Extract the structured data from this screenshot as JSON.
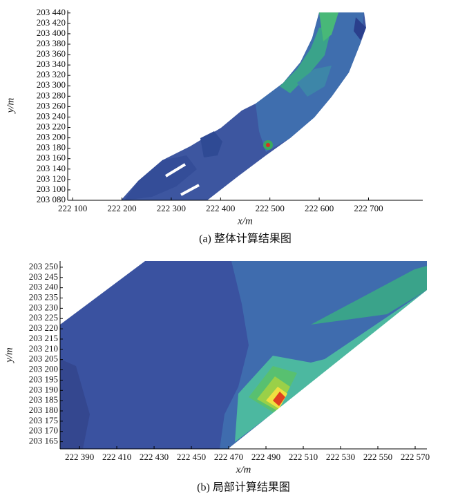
{
  "chart_data": [
    {
      "type": "contour",
      "caption": "(a) 整体计算结果图",
      "xlabel": "x/m",
      "ylabel": "y/m",
      "xlim": [
        222090,
        222810
      ],
      "ylim": [
        203080,
        203445
      ],
      "xticks": [
        {
          "value": 222100,
          "label": "222 100"
        },
        {
          "value": 222200,
          "label": "222 200"
        },
        {
          "value": 222300,
          "label": "222 300"
        },
        {
          "value": 222400,
          "label": "222 400"
        },
        {
          "value": 222500,
          "label": "222 500"
        },
        {
          "value": 222600,
          "label": "222 600"
        },
        {
          "value": 222700,
          "label": "222 700"
        }
      ],
      "yticks": [
        {
          "value": 203080,
          "label": "203 080"
        },
        {
          "value": 203100,
          "label": "203 100"
        },
        {
          "value": 203120,
          "label": "203 120"
        },
        {
          "value": 203140,
          "label": "203 140"
        },
        {
          "value": 203160,
          "label": "203 160"
        },
        {
          "value": 203180,
          "label": "203 180"
        },
        {
          "value": 203200,
          "label": "203 200"
        },
        {
          "value": 203220,
          "label": "203 220"
        },
        {
          "value": 203240,
          "label": "203 240"
        },
        {
          "value": 203260,
          "label": "203 260"
        },
        {
          "value": 203280,
          "label": "203 280"
        },
        {
          "value": 203300,
          "label": "203 300"
        },
        {
          "value": 203320,
          "label": "203 320"
        },
        {
          "value": 203340,
          "label": "203 340"
        },
        {
          "value": 203360,
          "label": "203 360"
        },
        {
          "value": 203380,
          "label": "203 380"
        },
        {
          "value": 203400,
          "label": "203 400"
        },
        {
          "value": 203420,
          "label": "203 420"
        },
        {
          "value": 203440,
          "label": "203 440"
        }
      ]
    },
    {
      "type": "contour",
      "caption": "(b) 局部计算结果图",
      "xlabel": "x/m",
      "ylabel": "y/m",
      "xlim": [
        222379.6,
        222576.3
      ],
      "ylim": [
        203161.5,
        203253
      ],
      "xticks": [
        {
          "value": 222390,
          "label": "222 390"
        },
        {
          "value": 222410,
          "label": "222 410"
        },
        {
          "value": 222430,
          "label": "222 430"
        },
        {
          "value": 222450,
          "label": "222 450"
        },
        {
          "value": 222470,
          "label": "222 470"
        },
        {
          "value": 222490,
          "label": "222 490"
        },
        {
          "value": 222510,
          "label": "222 510"
        },
        {
          "value": 222530,
          "label": "222 530"
        },
        {
          "value": 222550,
          "label": "222 550"
        },
        {
          "value": 222570,
          "label": "222 570"
        }
      ],
      "yticks": [
        {
          "value": 203165,
          "label": "203 165"
        },
        {
          "value": 203170,
          "label": "203 170"
        },
        {
          "value": 203175,
          "label": "203 175"
        },
        {
          "value": 203180,
          "label": "203 180"
        },
        {
          "value": 203185,
          "label": "203 185"
        },
        {
          "value": 203190,
          "label": "203 190"
        },
        {
          "value": 203195,
          "label": "203 195"
        },
        {
          "value": 203200,
          "label": "203 200"
        },
        {
          "value": 203205,
          "label": "203 205"
        },
        {
          "value": 203210,
          "label": "203 210"
        },
        {
          "value": 203215,
          "label": "203 215"
        },
        {
          "value": 203220,
          "label": "203 220"
        },
        {
          "value": 203225,
          "label": "203 225"
        },
        {
          "value": 203230,
          "label": "203 230"
        },
        {
          "value": 203235,
          "label": "203 235"
        },
        {
          "value": 203240,
          "label": "203 240"
        },
        {
          "value": 203245,
          "label": "203 245"
        },
        {
          "value": 203250,
          "label": "203 250"
        }
      ]
    }
  ]
}
